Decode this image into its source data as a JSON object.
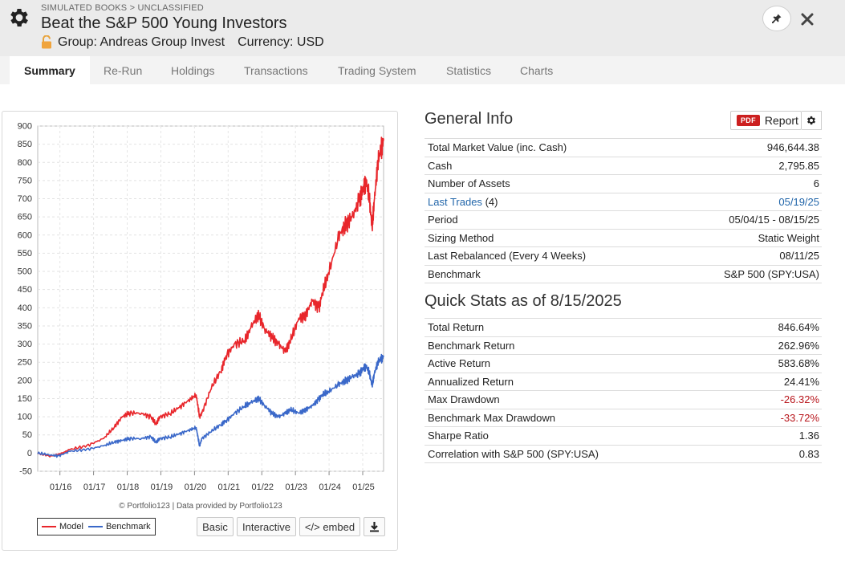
{
  "header": {
    "breadcrumb": "SIMULATED BOOKS > UNCLASSIFIED",
    "title": "Beat the S&P 500 Young Investors",
    "group": "Group: Andreas Group Invest",
    "currency": "Currency: USD"
  },
  "tabs": [
    {
      "label": "Summary",
      "active": true
    },
    {
      "label": "Re-Run"
    },
    {
      "label": "Holdings"
    },
    {
      "label": "Transactions"
    },
    {
      "label": "Trading System"
    },
    {
      "label": "Statistics"
    },
    {
      "label": "Charts"
    }
  ],
  "chart": {
    "copyright": "© Portfolio123 | Data provided by Portfolio123",
    "legend": {
      "model": "Model",
      "benchmark": "Benchmark"
    },
    "buttons": {
      "basic": "Basic",
      "interactive": "Interactive",
      "embed": "</> embed"
    }
  },
  "chart_data": {
    "type": "line",
    "y_ticks": [
      "900",
      "850",
      "800",
      "750",
      "700",
      "650",
      "600",
      "550",
      "500",
      "450",
      "400",
      "350",
      "300",
      "250",
      "200",
      "150",
      "100",
      "50",
      "0",
      "-50"
    ],
    "ylim": [
      -50,
      900
    ],
    "x_ticks": [
      "01/16",
      "01/17",
      "01/18",
      "01/19",
      "01/20",
      "01/21",
      "01/22",
      "01/23",
      "01/24",
      "01/25"
    ],
    "xlim": [
      2015.34,
      2025.62
    ],
    "grid": true,
    "legend_position": "bottom-left",
    "series": [
      {
        "name": "Model",
        "color": "#e8262b",
        "x": [
          2015.34,
          2015.7,
          2015.95,
          2016.3,
          2016.8,
          2017.3,
          2017.6,
          2017.85,
          2018.05,
          2018.4,
          2018.7,
          2018.85,
          2018.98,
          2019.3,
          2019.6,
          2019.9,
          2020.05,
          2020.15,
          2020.22,
          2020.5,
          2020.8,
          2020.95,
          2021.2,
          2021.5,
          2021.7,
          2021.9,
          2022.1,
          2022.3,
          2022.5,
          2022.7,
          2022.85,
          2023.1,
          2023.3,
          2023.5,
          2023.7,
          2023.8,
          2024.0,
          2024.3,
          2024.5,
          2024.7,
          2024.9,
          2025.0,
          2025.1,
          2025.2,
          2025.28,
          2025.35,
          2025.45,
          2025.55,
          2025.62
        ],
        "y": [
          0,
          -8,
          -5,
          10,
          20,
          40,
          70,
          100,
          110,
          110,
          100,
          80,
          100,
          110,
          130,
          150,
          160,
          100,
          110,
          180,
          230,
          270,
          300,
          310,
          350,
          380,
          340,
          320,
          300,
          280,
          310,
          370,
          380,
          420,
          400,
          440,
          500,
          600,
          630,
          650,
          700,
          720,
          750,
          700,
          620,
          700,
          800,
          840,
          860
        ]
      },
      {
        "name": "Benchmark",
        "color": "#3a68c9",
        "x": [
          2015.34,
          2015.7,
          2015.95,
          2016.3,
          2016.8,
          2017.3,
          2017.6,
          2017.85,
          2018.05,
          2018.4,
          2018.7,
          2018.85,
          2018.98,
          2019.3,
          2019.6,
          2019.9,
          2020.05,
          2020.15,
          2020.22,
          2020.5,
          2020.8,
          2020.95,
          2021.2,
          2021.5,
          2021.7,
          2021.9,
          2022.1,
          2022.3,
          2022.5,
          2022.7,
          2022.85,
          2023.1,
          2023.3,
          2023.5,
          2023.7,
          2023.8,
          2024.0,
          2024.3,
          2024.5,
          2024.7,
          2024.9,
          2025.0,
          2025.1,
          2025.2,
          2025.28,
          2025.35,
          2025.45,
          2025.55,
          2025.62
        ],
        "y": [
          0,
          -5,
          -8,
          5,
          10,
          20,
          30,
          35,
          40,
          40,
          45,
          30,
          40,
          45,
          55,
          65,
          70,
          20,
          40,
          60,
          80,
          90,
          110,
          130,
          140,
          150,
          130,
          110,
          100,
          110,
          120,
          110,
          120,
          130,
          150,
          160,
          170,
          190,
          200,
          210,
          220,
          230,
          240,
          220,
          185,
          220,
          250,
          260,
          265
        ]
      }
    ]
  },
  "general_info": {
    "title": "General Info",
    "report_badge": "PDF",
    "report_label": "Report",
    "rows": [
      {
        "label": "Total Market Value (inc. Cash)",
        "value": "946,644.38"
      },
      {
        "label": "Cash",
        "value": "2,795.85"
      },
      {
        "label": "Number of Assets",
        "value": "6"
      },
      {
        "label": "Last Trades",
        "label_suffix": "(4)",
        "value": "05/19/25",
        "link": true
      },
      {
        "label": "Period",
        "value": "05/04/15 - 08/15/25"
      },
      {
        "label": "Sizing Method",
        "value": "Static Weight"
      },
      {
        "label": "Last Rebalanced (Every 4 Weeks)",
        "value": "08/11/25"
      },
      {
        "label": "Benchmark",
        "value": "S&P 500 (SPY:USA)"
      }
    ]
  },
  "quick_stats": {
    "title": "Quick Stats as of 8/15/2025",
    "rows": [
      {
        "label": "Total Return",
        "value": "846.64%"
      },
      {
        "label": "Benchmark Return",
        "value": "262.96%"
      },
      {
        "label": "Active Return",
        "value": "583.68%"
      },
      {
        "label": "Annualized Return",
        "value": "24.41%"
      },
      {
        "label": "Max Drawdown",
        "value": "-26.32%",
        "negative": true
      },
      {
        "label": "Benchmark Max Drawdown",
        "value": "-33.72%",
        "negative": true
      },
      {
        "label": "Sharpe Ratio",
        "value": "1.36"
      },
      {
        "label": "Correlation with S&P 500 (SPY:USA)",
        "value": "0.83"
      }
    ]
  }
}
